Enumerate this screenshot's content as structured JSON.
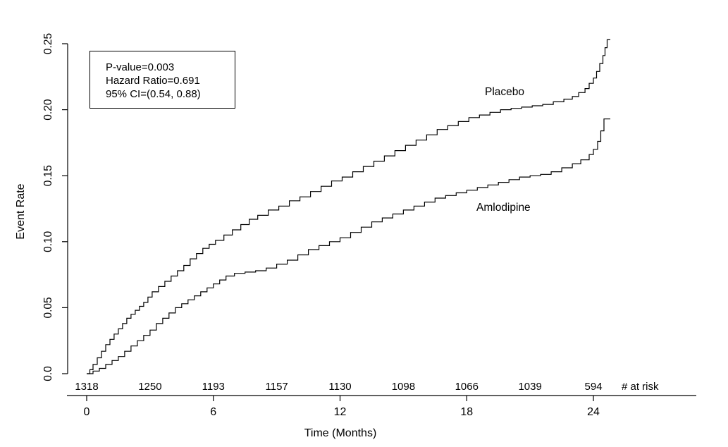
{
  "chart_data": {
    "type": "line",
    "subtype": "kaplan-meier-step-curves",
    "title": "",
    "xlabel": "Time (Months)",
    "ylabel": "Event Rate",
    "xlim": [
      0,
      25
    ],
    "ylim": [
      0,
      0.25
    ],
    "grid": false,
    "legend_position": "inline-labels",
    "x_ticks": [
      0,
      6,
      12,
      18,
      24
    ],
    "y_ticks": [
      "0.0",
      "0.05",
      "0.10",
      "0.15",
      "0.20",
      "0.25"
    ],
    "y_tick_values": [
      0,
      0.05,
      0.1,
      0.15,
      0.2,
      0.25
    ],
    "colors": {
      "curve": "#000000",
      "text": "#000000",
      "background": "#ffffff"
    },
    "annotation": {
      "lines": [
        "P-value=0.003",
        "Hazard Ratio=0.691",
        "95% CI=(0.54, 0.88)"
      ]
    },
    "series": [
      {
        "name": "Placebo",
        "step": true,
        "x": [
          0,
          0.15,
          0.3,
          0.5,
          0.7,
          0.9,
          1.1,
          1.3,
          1.5,
          1.7,
          1.9,
          2.1,
          2.3,
          2.5,
          2.7,
          2.9,
          3.1,
          3.4,
          3.7,
          4.0,
          4.3,
          4.6,
          4.9,
          5.2,
          5.5,
          5.8,
          6.1,
          6.5,
          6.9,
          7.3,
          7.7,
          8.1,
          8.6,
          9.1,
          9.6,
          10.1,
          10.6,
          11.1,
          11.6,
          12.1,
          12.6,
          13.1,
          13.6,
          14.1,
          14.6,
          15.1,
          15.6,
          16.1,
          16.6,
          17.1,
          17.6,
          18.1,
          18.6,
          19.1,
          19.6,
          20.1,
          20.6,
          21.1,
          21.6,
          22.1,
          22.6,
          23.0,
          23.3,
          23.6,
          23.8,
          24.0,
          24.15,
          24.3,
          24.45,
          24.55,
          24.65,
          24.8
        ],
        "y": [
          0.0,
          0.003,
          0.007,
          0.012,
          0.017,
          0.022,
          0.026,
          0.03,
          0.034,
          0.038,
          0.042,
          0.045,
          0.048,
          0.051,
          0.054,
          0.058,
          0.062,
          0.066,
          0.07,
          0.074,
          0.078,
          0.082,
          0.087,
          0.091,
          0.095,
          0.098,
          0.101,
          0.105,
          0.109,
          0.113,
          0.117,
          0.12,
          0.124,
          0.127,
          0.131,
          0.134,
          0.138,
          0.142,
          0.146,
          0.149,
          0.153,
          0.157,
          0.161,
          0.165,
          0.169,
          0.173,
          0.177,
          0.181,
          0.185,
          0.188,
          0.191,
          0.194,
          0.196,
          0.198,
          0.2,
          0.201,
          0.202,
          0.203,
          0.204,
          0.206,
          0.208,
          0.21,
          0.213,
          0.216,
          0.22,
          0.224,
          0.229,
          0.235,
          0.241,
          0.247,
          0.253,
          0.253
        ]
      },
      {
        "name": "Amlodipine",
        "step": true,
        "x": [
          0,
          0.3,
          0.6,
          0.9,
          1.2,
          1.5,
          1.8,
          2.1,
          2.4,
          2.7,
          3.0,
          3.3,
          3.6,
          3.9,
          4.2,
          4.5,
          4.8,
          5.1,
          5.4,
          5.7,
          6.0,
          6.3,
          6.6,
          7.0,
          7.5,
          8.0,
          8.5,
          9.0,
          9.5,
          10.0,
          10.5,
          11.0,
          11.5,
          12.0,
          12.5,
          13.0,
          13.5,
          14.0,
          14.5,
          15.0,
          15.5,
          16.0,
          16.5,
          17.0,
          17.5,
          18.0,
          18.5,
          19.0,
          19.5,
          20.0,
          20.5,
          21.0,
          21.5,
          22.0,
          22.5,
          23.0,
          23.4,
          23.8,
          24.0,
          24.2,
          24.35,
          24.5,
          24.8
        ],
        "y": [
          0.0,
          0.002,
          0.004,
          0.007,
          0.01,
          0.013,
          0.017,
          0.021,
          0.025,
          0.029,
          0.033,
          0.038,
          0.042,
          0.046,
          0.05,
          0.053,
          0.056,
          0.059,
          0.062,
          0.065,
          0.068,
          0.071,
          0.074,
          0.076,
          0.077,
          0.078,
          0.08,
          0.083,
          0.086,
          0.09,
          0.094,
          0.097,
          0.1,
          0.103,
          0.107,
          0.111,
          0.115,
          0.118,
          0.121,
          0.124,
          0.127,
          0.13,
          0.133,
          0.135,
          0.137,
          0.139,
          0.141,
          0.143,
          0.145,
          0.147,
          0.149,
          0.15,
          0.151,
          0.153,
          0.156,
          0.159,
          0.162,
          0.166,
          0.17,
          0.176,
          0.184,
          0.193,
          0.193
        ]
      }
    ],
    "at_risk": {
      "label": "# at risk",
      "months": [
        0,
        3,
        6,
        9,
        12,
        15,
        18,
        21,
        24
      ],
      "counts": [
        1318,
        1250,
        1193,
        1157,
        1130,
        1098,
        1066,
        1039,
        594
      ]
    }
  }
}
